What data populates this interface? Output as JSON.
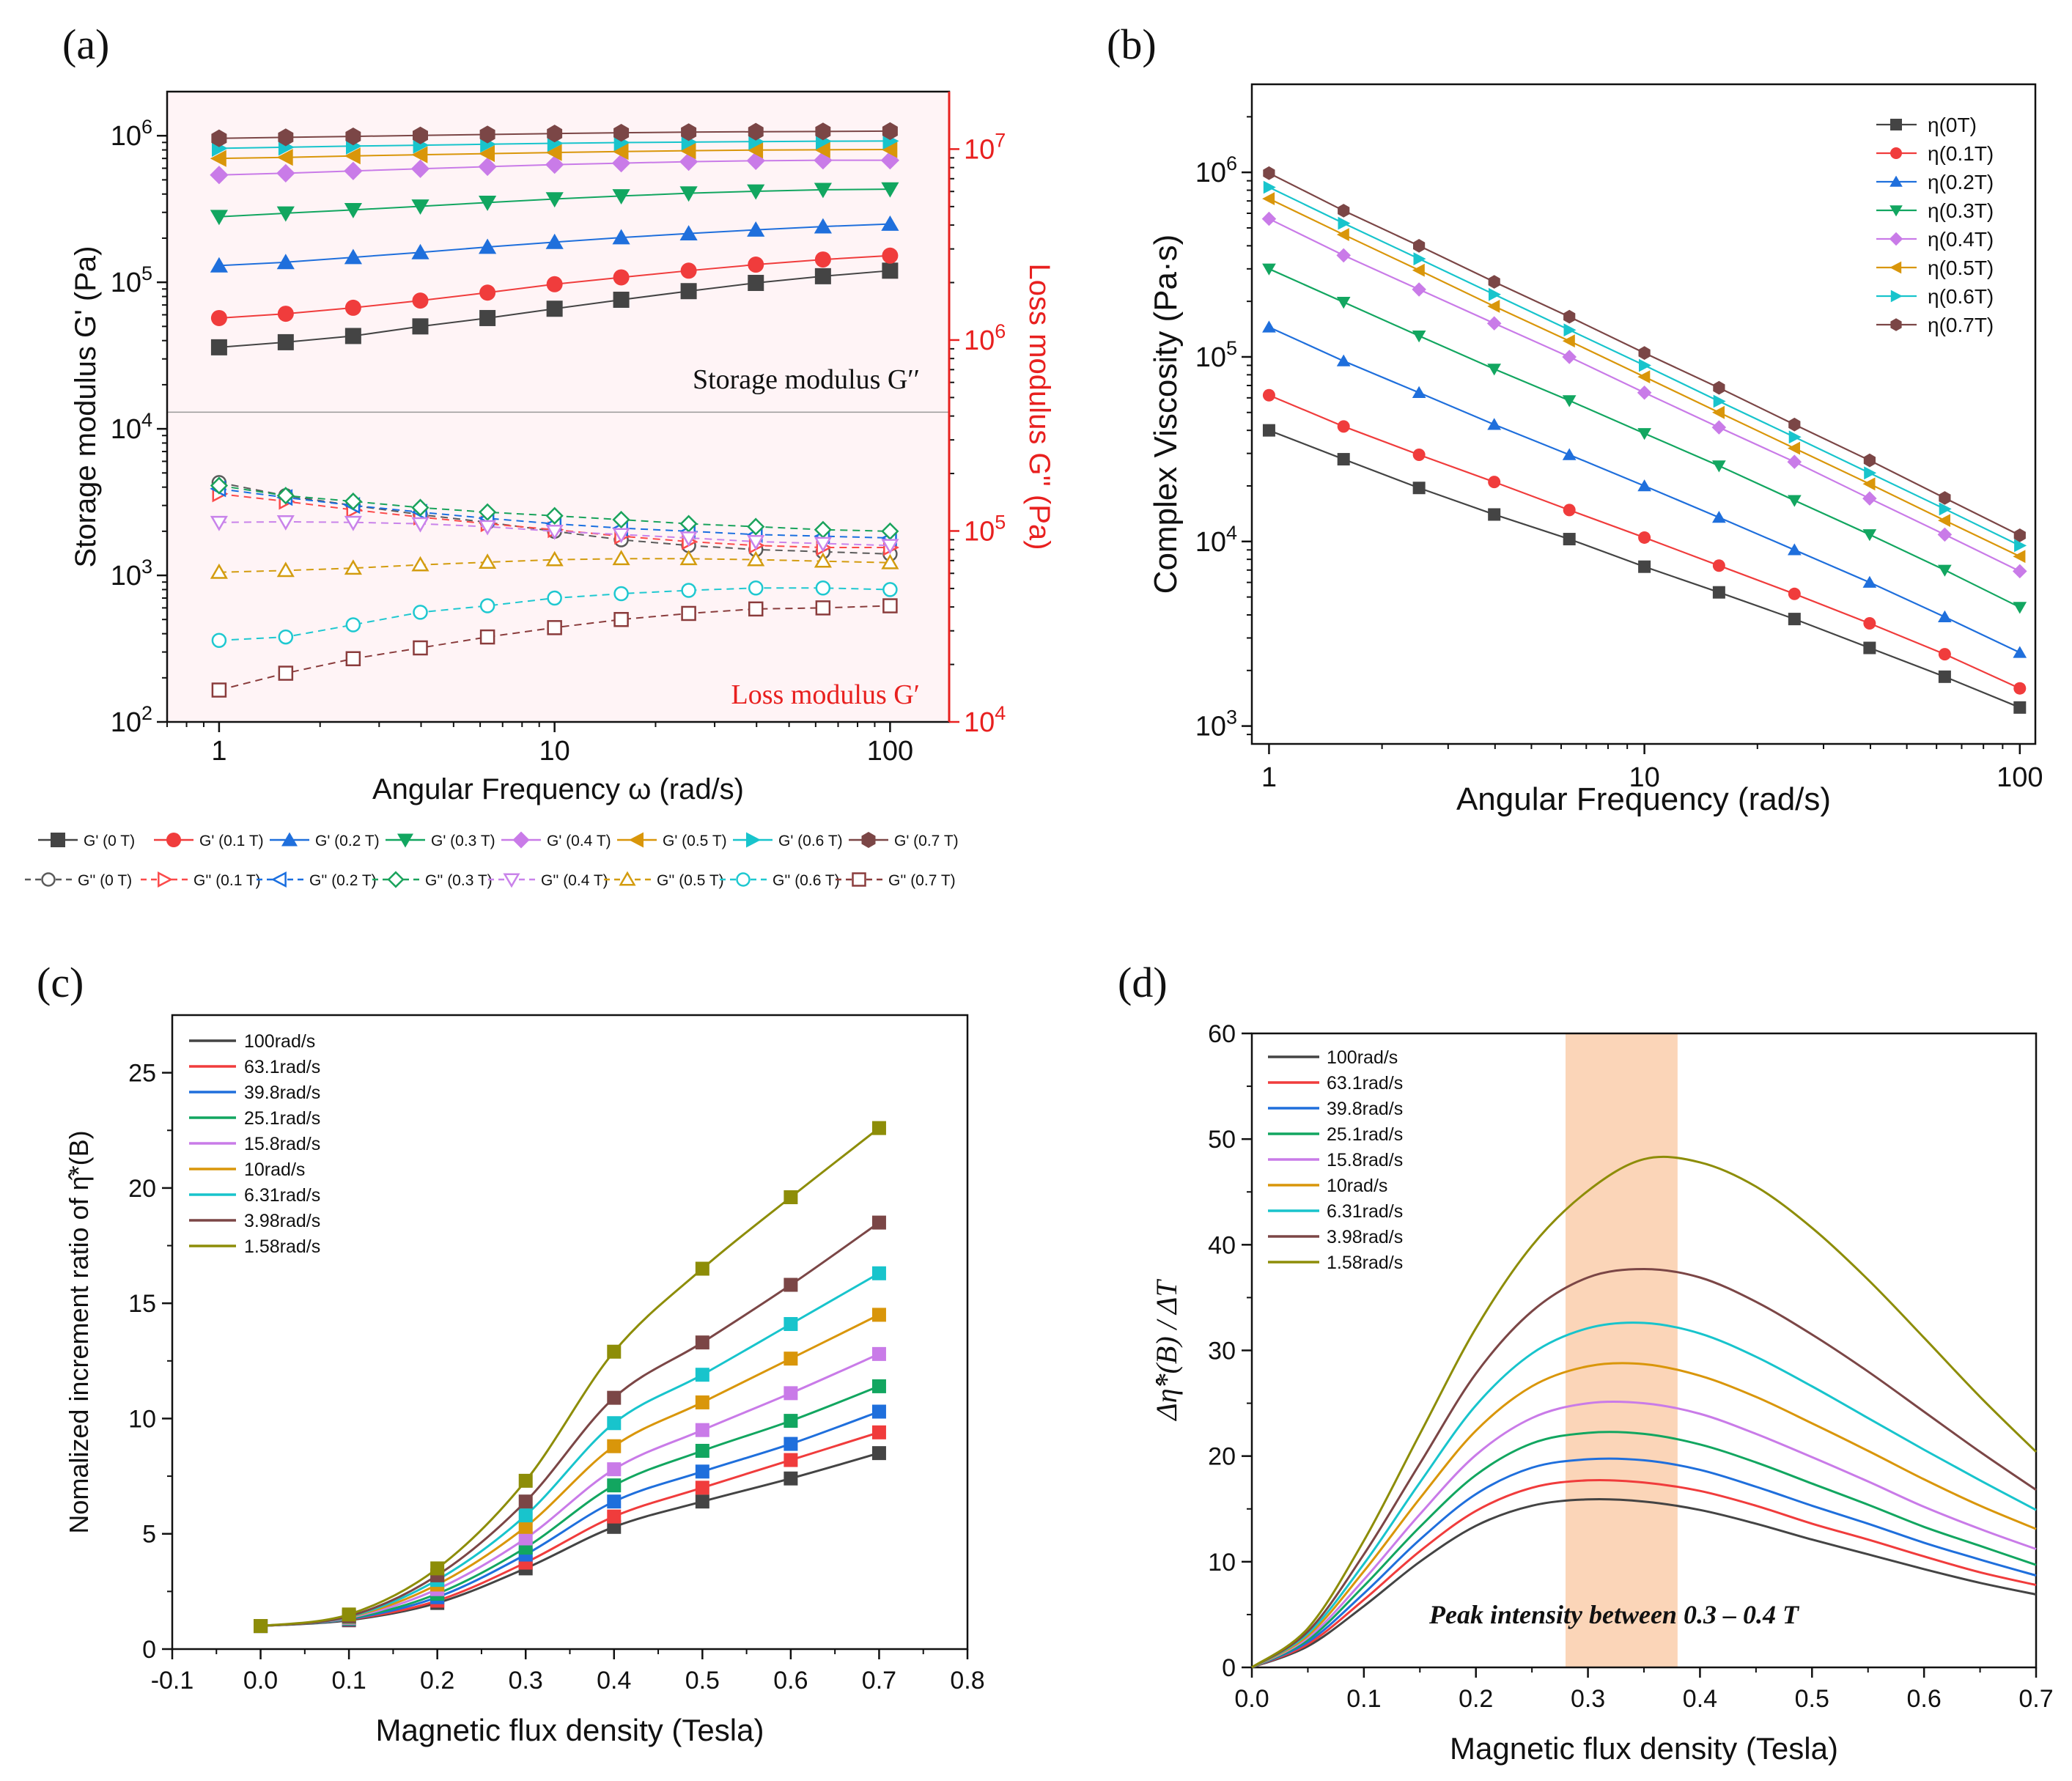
{
  "colors": {
    "ser": [
      "#444444",
      "#f03c3c",
      "#1f6fdc",
      "#12a660",
      "#c97be8",
      "#d9960a",
      "#18c4cc",
      "#7b4646",
      "#8d8d08"
    ],
    "g2": [
      "#5a5a5a",
      "#fb4a4a",
      "#1a6fe0",
      "#1aa35c",
      "#c983ea",
      "#d39c0f",
      "#1ec8d0",
      "#8a3c3c"
    ],
    "pink": "#fff4f6",
    "peak": "#fbd5b8",
    "red": "#e8201f"
  },
  "panel_labels": {
    "a": "(a)",
    "b": "(b)",
    "c": "(c)",
    "d": "(d)"
  },
  "chart_data": [
    {
      "id": "a",
      "type": "scatter-line",
      "x_scale": "log",
      "y_scale": "log",
      "xlim": [
        0.7,
        150
      ],
      "ylim": [
        100,
        2000000
      ],
      "y2lim": [
        10000,
        20000000
      ],
      "xlabel": "Angular Frequency ω (rad/s)",
      "ylabel": "Storage modulus G' (Pa)",
      "y2label": "Loss modulus G'' (Pa)",
      "x_ticks": [
        1,
        10,
        100
      ],
      "x_tick_labels": [
        "1",
        "10",
        "100"
      ],
      "y_ticks": [
        100,
        1000,
        10000,
        100000,
        1000000
      ],
      "y_tick_labels": [
        [
          "10",
          "2"
        ],
        [
          "10",
          "3"
        ],
        [
          "10",
          "4"
        ],
        [
          "10",
          "5"
        ],
        [
          "10",
          "6"
        ]
      ],
      "y2_ticks": [
        10000,
        100000,
        1000000,
        10000000
      ],
      "y2_tick_labels": [
        [
          "10",
          "4"
        ],
        [
          "10",
          "5"
        ],
        [
          "10",
          "6"
        ],
        [
          "10",
          "7"
        ]
      ],
      "annotation_top": "Storage modulus G′′",
      "annotation_bottom": "Loss modulus G′",
      "x": [
        1,
        1.58,
        2.51,
        3.98,
        6.31,
        10,
        15.8,
        25.1,
        39.8,
        63.1,
        100
      ],
      "storage_series": [
        {
          "name": "G' (0 T)",
          "values": [
            36000,
            39000,
            43000,
            50000,
            57000,
            66000,
            76000,
            87000,
            99000,
            110000,
            120000
          ]
        },
        {
          "name": "G' (0.1 T)",
          "values": [
            57000,
            61000,
            67000,
            75000,
            85000,
            97000,
            108000,
            120000,
            132000,
            143000,
            152000
          ]
        },
        {
          "name": "G' (0.2 T)",
          "values": [
            130000,
            137000,
            148000,
            160000,
            174000,
            188000,
            202000,
            215000,
            228000,
            240000,
            250000
          ]
        },
        {
          "name": "G' (0.3 T)",
          "values": [
            280000,
            296000,
            312000,
            330000,
            350000,
            370000,
            388000,
            405000,
            418000,
            428000,
            432000
          ]
        },
        {
          "name": "G' (0.4 T)",
          "values": [
            540000,
            555000,
            575000,
            595000,
            615000,
            635000,
            650000,
            665000,
            675000,
            680000,
            680000
          ]
        },
        {
          "name": "G' (0.5 T)",
          "values": [
            700000,
            712000,
            728000,
            742000,
            755000,
            768000,
            780000,
            790000,
            798000,
            802000,
            805000
          ]
        },
        {
          "name": "G' (0.6 T)",
          "values": [
            820000,
            835000,
            850000,
            862000,
            875000,
            888000,
            898000,
            905000,
            912000,
            918000,
            920000
          ]
        },
        {
          "name": "G' (0.7 T)",
          "values": [
            960000,
            975000,
            990000,
            1005000,
            1020000,
            1035000,
            1048000,
            1058000,
            1065000,
            1070000,
            1075000
          ]
        }
      ],
      "loss_series": [
        {
          "name": "G'' (0 T)",
          "values": [
            4300,
            3500,
            3000,
            2600,
            2300,
            2000,
            1750,
            1600,
            1500,
            1450,
            1400
          ]
        },
        {
          "name": "G'' (0.1 T)",
          "values": [
            3600,
            3200,
            2800,
            2500,
            2250,
            2050,
            1850,
            1700,
            1600,
            1550,
            1550
          ]
        },
        {
          "name": "G'' (0.2 T)",
          "values": [
            3900,
            3400,
            3000,
            2700,
            2450,
            2250,
            2100,
            2000,
            1900,
            1850,
            1800
          ]
        },
        {
          "name": "G'' (0.3 T)",
          "values": [
            4100,
            3500,
            3200,
            2900,
            2700,
            2550,
            2400,
            2250,
            2150,
            2050,
            2000
          ]
        },
        {
          "name": "G'' (0.4 T)",
          "values": [
            2300,
            2320,
            2300,
            2250,
            2150,
            2000,
            1900,
            1800,
            1700,
            1650,
            1600
          ]
        },
        {
          "name": "G'' (0.5 T)",
          "values": [
            1050,
            1080,
            1120,
            1180,
            1230,
            1280,
            1300,
            1300,
            1280,
            1250,
            1220
          ]
        },
        {
          "name": "G'' (0.6 T)",
          "values": [
            360,
            380,
            460,
            560,
            620,
            700,
            750,
            790,
            820,
            820,
            800
          ]
        },
        {
          "name": "G'' (0.7 T)",
          "values": [
            165,
            215,
            270,
            320,
            380,
            440,
            500,
            550,
            590,
            600,
            620
          ]
        }
      ]
    },
    {
      "id": "b",
      "type": "scatter-line",
      "x_scale": "log",
      "y_scale": "log",
      "xlim": [
        0.9,
        110
      ],
      "ylim": [
        800,
        3000000
      ],
      "xlabel": "Angular Frequency (rad/s)",
      "ylabel": "Complex Viscosity (Pa·s)",
      "x_ticks": [
        1,
        10,
        100
      ],
      "x_tick_labels": [
        "1",
        "10",
        "100"
      ],
      "y_ticks": [
        1000,
        10000,
        100000,
        1000000
      ],
      "y_tick_labels": [
        [
          "10",
          "3"
        ],
        [
          "10",
          "4"
        ],
        [
          "10",
          "5"
        ],
        [
          "10",
          "6"
        ]
      ],
      "x": [
        1,
        1.58,
        2.51,
        3.98,
        6.31,
        10,
        15.8,
        25.1,
        39.8,
        63.1,
        100
      ],
      "series": [
        {
          "name": "η(0T)",
          "values": [
            40000,
            27900,
            19500,
            14000,
            10300,
            7300,
            5300,
            3800,
            2650,
            1850,
            1260
          ]
        },
        {
          "name": "η(0.1T)",
          "values": [
            62000,
            42000,
            29500,
            21000,
            14800,
            10500,
            7400,
            5200,
            3600,
            2450,
            1600
          ]
        },
        {
          "name": "η(0.2T)",
          "values": [
            145000,
            95000,
            64000,
            43000,
            29500,
            20000,
            13500,
            9000,
            6000,
            3900,
            2500
          ]
        },
        {
          "name": "η(0.3T)",
          "values": [
            300000,
            198000,
            130000,
            86000,
            58000,
            38500,
            25700,
            16700,
            10900,
            7000,
            4400
          ]
        },
        {
          "name": "η(0.4T)",
          "values": [
            560000,
            355000,
            232000,
            152000,
            100000,
            64000,
            41500,
            27000,
            17100,
            10900,
            6900
          ]
        },
        {
          "name": "η(0.5T)",
          "values": [
            720000,
            460000,
            295000,
            188000,
            122000,
            78000,
            50000,
            32000,
            20500,
            13000,
            8300
          ]
        },
        {
          "name": "η(0.6T)",
          "values": [
            830000,
            530000,
            340000,
            218000,
            140000,
            90000,
            57500,
            36800,
            23500,
            15000,
            9500
          ]
        },
        {
          "name": "η(0.7T)",
          "values": [
            990000,
            620000,
            400000,
            255000,
            165000,
            105000,
            68000,
            43000,
            27500,
            17200,
            10800
          ]
        }
      ]
    },
    {
      "id": "c",
      "type": "scatter-line",
      "xlim": [
        -0.1,
        0.8
      ],
      "ylim": [
        0,
        27.5
      ],
      "xlabel": "Magnetic flux density (Tesla)",
      "ylabel": "Nomalized increment ratio of η̂*(B)",
      "x_ticks": [
        -0.1,
        0,
        0.1,
        0.2,
        0.3,
        0.4,
        0.5,
        0.6,
        0.7,
        0.8
      ],
      "x_tick_labels": [
        "-0.1",
        "0.0",
        "0.1",
        "0.2",
        "0.3",
        "0.4",
        "0.5",
        "0.6",
        "0.7",
        "0.8"
      ],
      "y_ticks": [
        0,
        5,
        10,
        15,
        20,
        25
      ],
      "y_tick_labels": [
        "0",
        "5",
        "10",
        "15",
        "20",
        "25"
      ],
      "x": [
        0,
        0.1,
        0.2,
        0.3,
        0.4,
        0.5,
        0.6,
        0.7
      ],
      "series": [
        {
          "name": "100rad/s",
          "values": [
            1,
            1.25,
            2.0,
            3.5,
            5.3,
            6.4,
            7.4,
            8.5
          ]
        },
        {
          "name": "63.1rad/s",
          "values": [
            1,
            1.28,
            2.1,
            3.75,
            5.75,
            7.0,
            8.2,
            9.4
          ]
        },
        {
          "name": "39.8rad/s",
          "values": [
            1,
            1.3,
            2.25,
            4.1,
            6.4,
            7.7,
            8.9,
            10.3
          ]
        },
        {
          "name": "25.1rad/s",
          "values": [
            1,
            1.32,
            2.4,
            4.4,
            7.1,
            8.6,
            9.9,
            11.4
          ]
        },
        {
          "name": "15.8rad/s",
          "values": [
            1,
            1.35,
            2.6,
            4.8,
            7.8,
            9.5,
            11.1,
            12.8
          ]
        },
        {
          "name": "10rad/s",
          "values": [
            1,
            1.38,
            2.8,
            5.3,
            8.8,
            10.7,
            12.6,
            14.5
          ]
        },
        {
          "name": "6.31rad/s",
          "values": [
            1,
            1.4,
            3.0,
            5.8,
            9.8,
            11.9,
            14.1,
            16.3
          ]
        },
        {
          "name": "3.98rad/s",
          "values": [
            1,
            1.42,
            3.2,
            6.4,
            10.9,
            13.3,
            15.8,
            18.5
          ]
        },
        {
          "name": "1.58rad/s",
          "values": [
            1,
            1.5,
            3.5,
            7.3,
            12.9,
            16.5,
            19.6,
            22.6
          ]
        }
      ]
    },
    {
      "id": "d",
      "type": "line",
      "xlim": [
        0,
        0.7
      ],
      "ylim": [
        0,
        60
      ],
      "xlabel": "Magnetic flux density (Tesla)",
      "ylabel": "Δη̂*(B) / ΔT",
      "x_ticks": [
        0,
        0.1,
        0.2,
        0.3,
        0.4,
        0.5,
        0.6,
        0.7
      ],
      "x_tick_labels": [
        "0.0",
        "0.1",
        "0.2",
        "0.3",
        "0.4",
        "0.5",
        "0.6",
        "0.7"
      ],
      "y_ticks": [
        0,
        10,
        20,
        30,
        40,
        50,
        60
      ],
      "y_tick_labels": [
        "0",
        "10",
        "20",
        "30",
        "40",
        "50",
        "60"
      ],
      "shaded_region_x": [
        0.28,
        0.38
      ],
      "annotation": "Peak intensity between 0.3 – 0.4 T",
      "x": [
        0,
        0.05,
        0.1,
        0.15,
        0.2,
        0.25,
        0.3,
        0.35,
        0.4,
        0.45,
        0.5,
        0.55,
        0.6,
        0.65,
        0.7
      ],
      "series": [
        {
          "name": "100rad/s",
          "values": [
            0,
            2.0,
            5.8,
            10.0,
            13.4,
            15.3,
            15.9,
            15.7,
            14.9,
            13.6,
            12.1,
            10.7,
            9.3,
            8.0,
            6.9
          ]
        },
        {
          "name": "63.1rad/s",
          "values": [
            0,
            2.2,
            6.4,
            11.0,
            14.8,
            17.0,
            17.7,
            17.5,
            16.7,
            15.3,
            13.6,
            12.1,
            10.5,
            9.0,
            7.8
          ]
        },
        {
          "name": "39.8rad/s",
          "values": [
            0,
            2.4,
            7.0,
            12.1,
            16.4,
            18.9,
            19.7,
            19.6,
            18.7,
            17.1,
            15.3,
            13.6,
            11.8,
            10.2,
            8.7
          ]
        },
        {
          "name": "25.1rad/s",
          "values": [
            0,
            2.6,
            7.7,
            13.3,
            18.2,
            21.2,
            22.2,
            22.1,
            21.1,
            19.4,
            17.4,
            15.4,
            13.3,
            11.5,
            9.7
          ]
        },
        {
          "name": "15.8rad/s",
          "values": [
            0,
            2.8,
            8.3,
            14.5,
            20.1,
            23.6,
            25.0,
            25.0,
            24.0,
            22.1,
            19.9,
            17.6,
            15.2,
            13.1,
            11.2
          ]
        },
        {
          "name": "10rad/s",
          "values": [
            0,
            3.0,
            9.1,
            16.0,
            22.4,
            26.6,
            28.5,
            28.7,
            27.6,
            25.6,
            23.1,
            20.5,
            17.8,
            15.3,
            13.1
          ]
        },
        {
          "name": "6.31rad/s",
          "values": [
            0,
            3.2,
            9.8,
            17.5,
            24.8,
            29.7,
            32.1,
            32.6,
            31.6,
            29.4,
            26.6,
            23.6,
            20.6,
            17.7,
            14.9
          ]
        },
        {
          "name": "3.98rad/s",
          "values": [
            0,
            3.4,
            10.7,
            19.3,
            27.8,
            33.7,
            36.9,
            37.7,
            36.9,
            34.6,
            31.5,
            28.0,
            24.2,
            20.4,
            16.8
          ]
        },
        {
          "name": "1.58rad/s",
          "values": [
            0,
            3.7,
            12.0,
            22.1,
            32.1,
            39.9,
            45.1,
            48.1,
            47.8,
            45.5,
            41.6,
            36.7,
            31.2,
            25.6,
            20.4
          ]
        }
      ]
    }
  ]
}
